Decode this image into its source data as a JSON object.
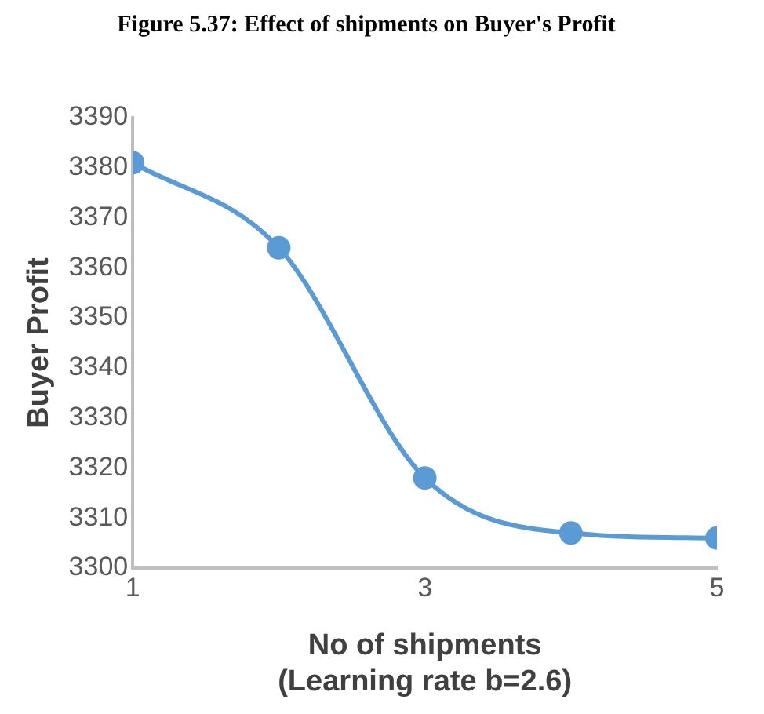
{
  "chart_data": {
    "type": "line",
    "title": "Figure 5.37: Effect of shipments on Buyer's Profit",
    "xlabel": "No of shipments\n(Learning rate b=2.6)",
    "ylabel": "Buyer Profit",
    "x": [
      1,
      2,
      3,
      4,
      5
    ],
    "series": [
      {
        "color": "#5b9bd5",
        "values": [
          3381,
          3364,
          3318,
          3307,
          3306
        ]
      }
    ],
    "xlim": [
      1,
      5
    ],
    "xticks": [
      1,
      3,
      5
    ],
    "ylim": [
      3300,
      3390
    ],
    "yticks": [
      3300,
      3310,
      3320,
      3330,
      3340,
      3350,
      3360,
      3370,
      3380,
      3390
    ],
    "grid": false,
    "legend": false,
    "marker": "circle",
    "line_style": "solid"
  }
}
